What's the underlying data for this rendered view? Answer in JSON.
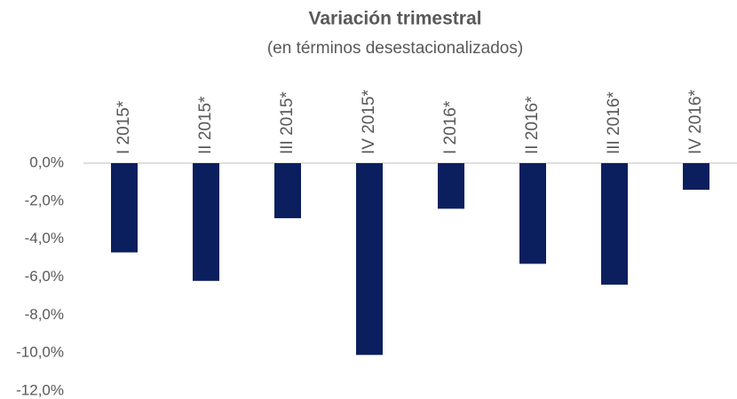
{
  "chart_data": {
    "type": "bar",
    "title": "Variación trimestral",
    "subtitle": "(en términos desestacionalizados)",
    "categories": [
      "I 2015*",
      "II 2015*",
      "III 2015*",
      "IV 2015*",
      "I 2016*",
      "II 2016*",
      "III 2016*",
      "IV 2016*"
    ],
    "values": [
      -4.7,
      -6.2,
      -2.9,
      -10.1,
      -2.4,
      -5.3,
      -6.4,
      -1.4
    ],
    "color": "#0b1f5e",
    "ylim": [
      -12,
      0
    ],
    "yticks": [
      {
        "value": 0,
        "label": "0,0%"
      },
      {
        "value": -2,
        "label": "-2,0%"
      },
      {
        "value": -4,
        "label": "-4,0%"
      },
      {
        "value": -6,
        "label": "-6,0%"
      },
      {
        "value": -8,
        "label": "-8,0%"
      },
      {
        "value": -10,
        "label": "-10,0%"
      },
      {
        "value": -12,
        "label": "-12,0%"
      }
    ],
    "grid": false
  }
}
